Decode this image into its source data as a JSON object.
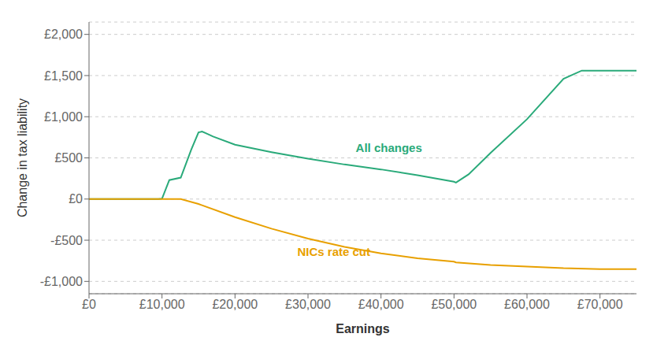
{
  "chart_data": {
    "type": "line",
    "x_label": "Earnings",
    "y_label": "Change in tax liability",
    "series": [
      {
        "name": "All changes",
        "color": "#2aaa7a",
        "x": [
          0,
          9000,
          9500,
          10000,
          11000,
          12570,
          12570,
          14000,
          15000,
          15500,
          16000,
          17000,
          20000,
          25000,
          30000,
          35000,
          40000,
          45000,
          50000,
          50270,
          50270,
          52000,
          55000,
          60000,
          65000,
          67500,
          75000
        ],
        "values": [
          0,
          0,
          0,
          5,
          230,
          260,
          260,
          600,
          810,
          820,
          800,
          760,
          660,
          570,
          490,
          420,
          360,
          290,
          210,
          200,
          200,
          300,
          560,
          970,
          1460,
          1560,
          1560
        ]
      },
      {
        "name": "NICs rate cut",
        "color": "#e8a000",
        "x": [
          0,
          9000,
          12570,
          15000,
          20000,
          25000,
          30000,
          35000,
          40000,
          45000,
          50000,
          50270,
          55000,
          60000,
          65000,
          70000,
          75000
        ],
        "values": [
          0,
          0,
          0,
          -60,
          -220,
          -360,
          -480,
          -580,
          -660,
          -720,
          -760,
          -770,
          -800,
          -820,
          -840,
          -850,
          -850
        ]
      }
    ],
    "annotations": [
      {
        "text": "All changes",
        "x": 36000,
        "y": 620,
        "color": "#2aaa7a"
      },
      {
        "text": "NICs rate cut",
        "x": 28000,
        "y": -640,
        "color": "#e8a000"
      }
    ],
    "xlim": [
      0,
      75000
    ],
    "xticks": [
      {
        "value": 0,
        "label": "£0"
      },
      {
        "value": 10000,
        "label": "£10,000"
      },
      {
        "value": 20000,
        "label": "£20,000"
      },
      {
        "value": 30000,
        "label": "£30,000"
      },
      {
        "value": 40000,
        "label": "£40,000"
      },
      {
        "value": 50000,
        "label": "£50,000"
      },
      {
        "value": 60000,
        "label": "£60,000"
      },
      {
        "value": 70000,
        "label": "£70,000"
      }
    ],
    "ylim": [
      -1150,
      2150
    ],
    "yticks": [
      {
        "value": -1000,
        "label": "-£1,000"
      },
      {
        "value": -500,
        "label": "-£500"
      },
      {
        "value": 0,
        "label": "£0"
      },
      {
        "value": 500,
        "label": "£500"
      },
      {
        "value": 1000,
        "label": "£1,000"
      },
      {
        "value": 1500,
        "label": "£1,500"
      },
      {
        "value": 2000,
        "label": "£2,000"
      }
    ],
    "grid": true
  }
}
